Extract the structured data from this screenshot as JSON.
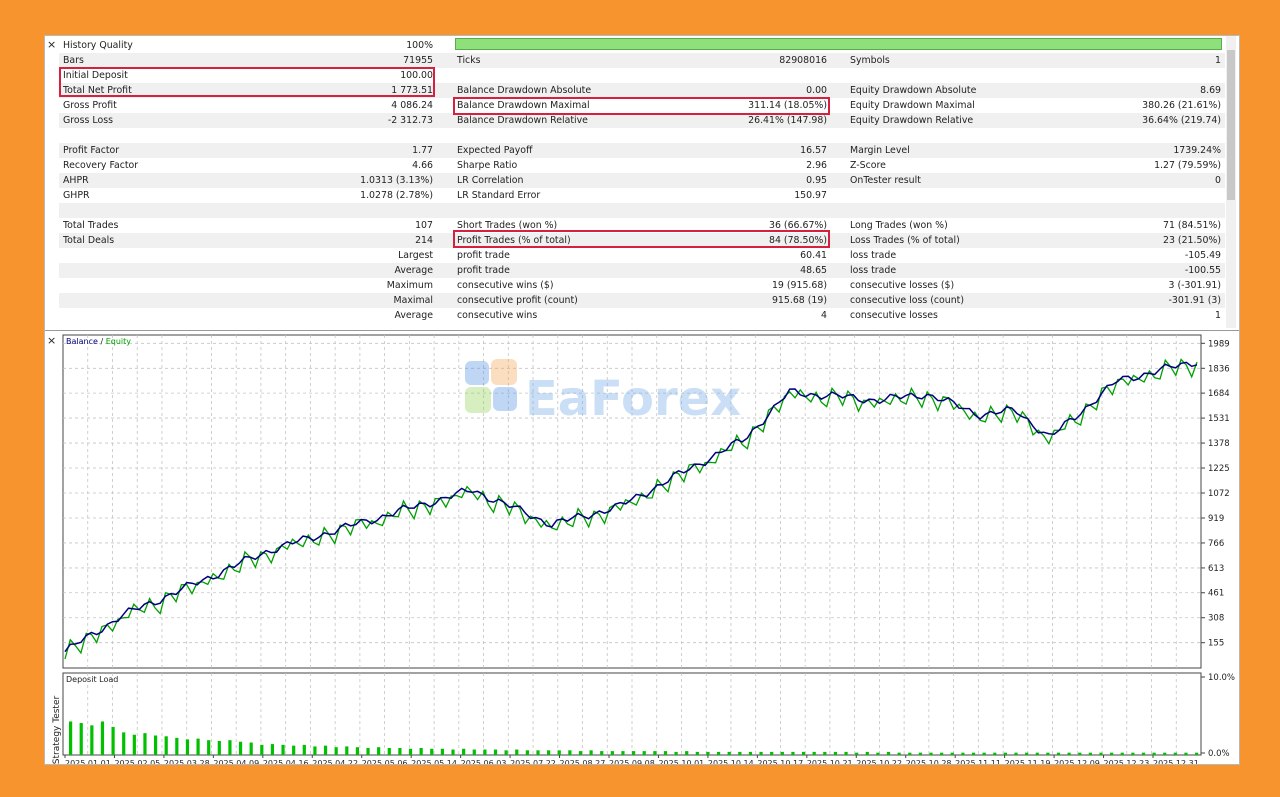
{
  "report": {
    "history_quality": {
      "label": "History Quality",
      "value": "100%"
    },
    "rows": [
      {
        "c1": [
          "Bars",
          "71955"
        ],
        "c2": [
          "Ticks",
          "82908016"
        ],
        "c3": [
          "Symbols",
          "1"
        ]
      },
      {
        "c1": [
          "Initial Deposit",
          "100.00"
        ],
        "c2": [
          "",
          ""
        ],
        "c3": [
          "",
          ""
        ]
      },
      {
        "c1": [
          "Total Net Profit",
          "1 773.51"
        ],
        "c2": [
          "Balance Drawdown Absolute",
          "0.00"
        ],
        "c3": [
          "Equity Drawdown Absolute",
          "8.69"
        ]
      },
      {
        "c1": [
          "Gross Profit",
          "4 086.24"
        ],
        "c2": [
          "Balance Drawdown Maximal",
          "311.14 (18.05%)"
        ],
        "c3": [
          "Equity Drawdown Maximal",
          "380.26 (21.61%)"
        ]
      },
      {
        "c1": [
          "Gross Loss",
          "-2 312.73"
        ],
        "c2": [
          "Balance Drawdown Relative",
          "26.41% (147.98)"
        ],
        "c3": [
          "Equity Drawdown Relative",
          "36.64% (219.74)"
        ]
      },
      {
        "c1": [
          "",
          ""
        ],
        "c2": [
          "",
          ""
        ],
        "c3": [
          "",
          ""
        ]
      },
      {
        "c1": [
          "Profit Factor",
          "1.77"
        ],
        "c2": [
          "Expected Payoff",
          "16.57"
        ],
        "c3": [
          "Margin Level",
          "1739.24%"
        ]
      },
      {
        "c1": [
          "Recovery Factor",
          "4.66"
        ],
        "c2": [
          "Sharpe Ratio",
          "2.96"
        ],
        "c3": [
          "Z-Score",
          "1.27 (79.59%)"
        ]
      },
      {
        "c1": [
          "AHPR",
          "1.0313 (3.13%)"
        ],
        "c2": [
          "LR Correlation",
          "0.95"
        ],
        "c3": [
          "OnTester result",
          "0"
        ]
      },
      {
        "c1": [
          "GHPR",
          "1.0278 (2.78%)"
        ],
        "c2": [
          "LR Standard Error",
          "150.97"
        ],
        "c3": [
          "",
          ""
        ]
      },
      {
        "c1": [
          "",
          ""
        ],
        "c2": [
          "",
          ""
        ],
        "c3": [
          "",
          ""
        ]
      },
      {
        "c1": [
          "Total Trades",
          "107"
        ],
        "c2": [
          "Short Trades (won %)",
          "36 (66.67%)"
        ],
        "c3": [
          "Long Trades (won %)",
          "71 (84.51%)"
        ]
      },
      {
        "c1": [
          "Total Deals",
          "214"
        ],
        "c2": [
          "Profit Trades (% of total)",
          "84 (78.50%)"
        ],
        "c3": [
          "Loss Trades (% of total)",
          "23 (21.50%)"
        ]
      },
      {
        "c1": [
          "",
          "Largest"
        ],
        "c2": [
          "profit trade",
          "60.41"
        ],
        "c3": [
          "loss trade",
          "-105.49"
        ]
      },
      {
        "c1": [
          "",
          "Average"
        ],
        "c2": [
          "profit trade",
          "48.65"
        ],
        "c3": [
          "loss trade",
          "-100.55"
        ]
      },
      {
        "c1": [
          "",
          "Maximum"
        ],
        "c2": [
          "consecutive wins ($)",
          "19 (915.68)"
        ],
        "c3": [
          "consecutive losses ($)",
          "3 (-301.91)"
        ]
      },
      {
        "c1": [
          "",
          "Maximal"
        ],
        "c2": [
          "consecutive profit (count)",
          "915.68 (19)"
        ],
        "c3": [
          "consecutive loss (count)",
          "-301.91 (3)"
        ]
      },
      {
        "c1": [
          "",
          "Average"
        ],
        "c2": [
          "consecutive wins",
          "4"
        ],
        "c3": [
          "consecutive losses",
          "1"
        ]
      }
    ]
  },
  "watermark": "EaForex",
  "side_tab": "Strategy Tester",
  "close_symbol": "×",
  "chart_data": [
    {
      "type": "line",
      "legend": {
        "balance": "Balance",
        "separator": " / ",
        "equity": "Equity"
      },
      "y_ticks": [
        "1989",
        "1836",
        "1684",
        "1531",
        "1378",
        "1225",
        "1072",
        "919",
        "766",
        "613",
        "461",
        "308",
        "155"
      ],
      "ylim": [
        0,
        2040
      ],
      "x_ticks": [
        "2025.01.01",
        "2025.02.05",
        "2025.03.28",
        "2025.04.09",
        "2025.04.16",
        "2025.04.22",
        "2025.05.06",
        "2025.05.14",
        "2025.06.03",
        "2025.07.22",
        "2025.08.27",
        "2025.09.08",
        "2025.10.01",
        "2025.10.14",
        "2025.10.17",
        "2025.10.21",
        "2025.10.22",
        "2025.10.28",
        "2025.11.11",
        "2025.11.19",
        "2025.12.09",
        "2025.12.23",
        "2025.12.31"
      ],
      "balance_keypoints": [
        [
          0,
          100
        ],
        [
          0.05,
          320
        ],
        [
          0.1,
          470
        ],
        [
          0.18,
          720
        ],
        [
          0.3,
          970
        ],
        [
          0.36,
          1090
        ],
        [
          0.43,
          880
        ],
        [
          0.49,
          990
        ],
        [
          0.6,
          1400
        ],
        [
          0.64,
          1690
        ],
        [
          0.72,
          1640
        ],
        [
          0.76,
          1680
        ],
        [
          0.81,
          1550
        ],
        [
          0.84,
          1580
        ],
        [
          0.87,
          1410
        ],
        [
          0.93,
          1760
        ],
        [
          1,
          1880
        ]
      ],
      "series": [
        {
          "name": "Balance",
          "color": "#00007f"
        },
        {
          "name": "Equity",
          "color": "#00a000"
        }
      ]
    },
    {
      "type": "bar",
      "title": "Deposit Load",
      "y_ticks": [
        "10.0%",
        "0.0%"
      ],
      "ylim": [
        0,
        10
      ],
      "bar_color": "#00c000",
      "values": [
        4.3,
        4.1,
        3.8,
        4.3,
        3.6,
        2.9,
        2.6,
        2.8,
        2.5,
        2.4,
        2.2,
        2.0,
        2.1,
        1.9,
        1.8,
        1.9,
        1.7,
        1.6,
        1.3,
        1.4,
        1.3,
        1.2,
        1.3,
        1.1,
        1.2,
        1.0,
        1.1,
        1.0,
        0.9,
        1.0,
        0.9,
        0.9,
        0.8,
        0.9,
        0.8,
        0.8,
        0.7,
        0.8,
        0.7,
        0.7,
        0.7,
        0.6,
        0.7,
        0.6,
        0.6,
        0.6,
        0.6,
        0.6,
        0.5,
        0.6,
        0.5,
        0.5,
        0.5,
        0.5,
        0.5,
        0.5,
        0.5,
        0.4,
        0.5,
        0.4,
        0.4,
        0.4,
        0.4,
        0.4,
        0.4,
        0.4,
        0.4,
        0.4,
        0.4,
        0.4,
        0.4,
        0.4,
        0.4,
        0.4,
        0.3,
        0.4,
        0.3,
        0.4,
        0.3,
        0.3,
        0.3,
        0.3,
        0.3,
        0.3,
        0.3,
        0.3,
        0.3,
        0.3,
        0.3,
        0.3,
        0.3,
        0.3,
        0.3,
        0.3,
        0.3,
        0.3,
        0.3,
        0.3,
        0.3,
        0.3,
        0.3,
        0.3,
        0.3,
        0.3,
        0.3,
        0.3,
        0.3
      ]
    }
  ]
}
